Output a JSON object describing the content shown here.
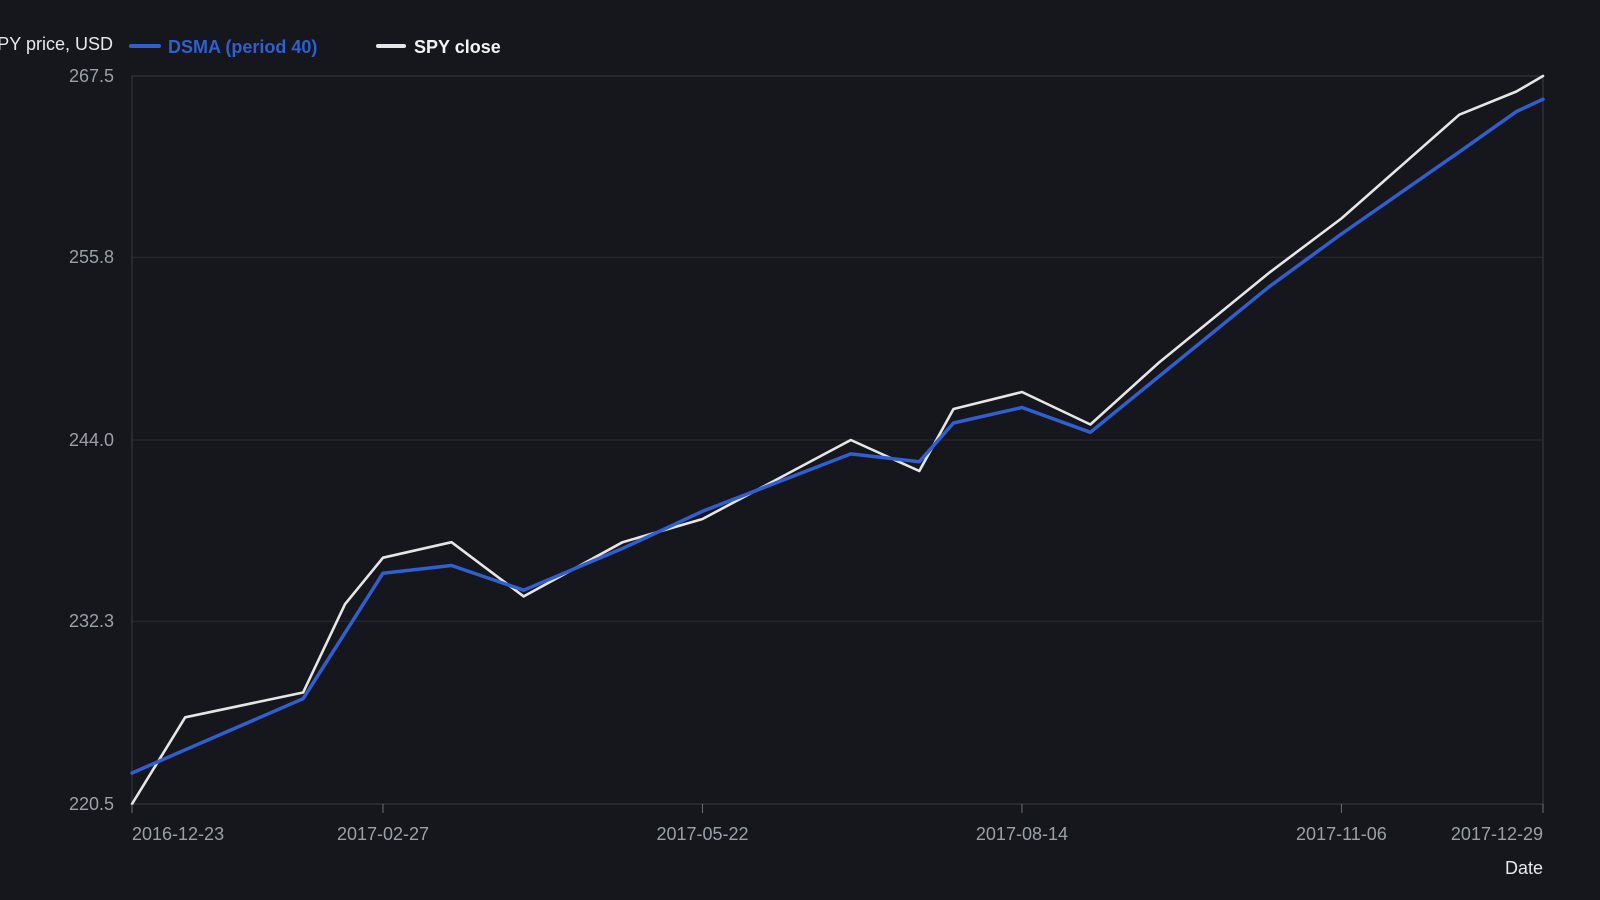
{
  "chart_data": {
    "type": "line",
    "ylabel": "SPY price, USD",
    "xlabel": "Date",
    "ylim": [
      220.5,
      267.5
    ],
    "yticks": [
      "220.5",
      "232.3",
      "244.0",
      "255.8",
      "267.5"
    ],
    "xlim": [
      "2016-12-23",
      "2017-12-29"
    ],
    "xticks": [
      "2016-12-23",
      "2017-02-27",
      "2017-05-22",
      "2017-08-14",
      "2017-11-06",
      "2017-12-29"
    ],
    "grid": true,
    "legend_position": "top-left",
    "series": [
      {
        "name": "DSMA (period 40)",
        "color": "#2f5fd0",
        "points": [
          [
            "2016-12-23",
            222.5
          ],
          [
            "2017-01-06",
            224.0
          ],
          [
            "2017-02-06",
            227.3
          ],
          [
            "2017-02-27",
            235.4
          ],
          [
            "2017-03-17",
            235.9
          ],
          [
            "2017-04-05",
            234.3
          ],
          [
            "2017-05-01",
            237.0
          ],
          [
            "2017-05-22",
            239.4
          ],
          [
            "2017-06-30",
            243.1
          ],
          [
            "2017-07-18",
            242.6
          ],
          [
            "2017-07-27",
            245.1
          ],
          [
            "2017-08-14",
            246.1
          ],
          [
            "2017-09-01",
            244.5
          ],
          [
            "2017-09-19",
            248.1
          ],
          [
            "2017-10-18",
            253.9
          ],
          [
            "2017-11-06",
            257.3
          ],
          [
            "2017-12-07",
            262.6
          ],
          [
            "2017-12-22",
            265.2
          ],
          [
            "2017-12-29",
            266.0
          ]
        ]
      },
      {
        "name": "SPY close",
        "color": "#e6e6e6",
        "points": [
          [
            "2016-12-23",
            220.5
          ],
          [
            "2017-01-06",
            226.1
          ],
          [
            "2017-02-06",
            227.7
          ],
          [
            "2017-02-17",
            233.4
          ],
          [
            "2017-02-27",
            236.4
          ],
          [
            "2017-03-17",
            237.4
          ],
          [
            "2017-04-05",
            233.9
          ],
          [
            "2017-05-01",
            237.4
          ],
          [
            "2017-05-22",
            238.9
          ],
          [
            "2017-06-30",
            244.0
          ],
          [
            "2017-07-18",
            242.0
          ],
          [
            "2017-07-27",
            246.0
          ],
          [
            "2017-08-14",
            247.1
          ],
          [
            "2017-09-01",
            245.0
          ],
          [
            "2017-09-19",
            249.0
          ],
          [
            "2017-10-18",
            254.8
          ],
          [
            "2017-11-06",
            258.3
          ],
          [
            "2017-12-07",
            265.0
          ],
          [
            "2017-12-22",
            266.5
          ],
          [
            "2017-12-29",
            267.5
          ]
        ]
      }
    ]
  }
}
